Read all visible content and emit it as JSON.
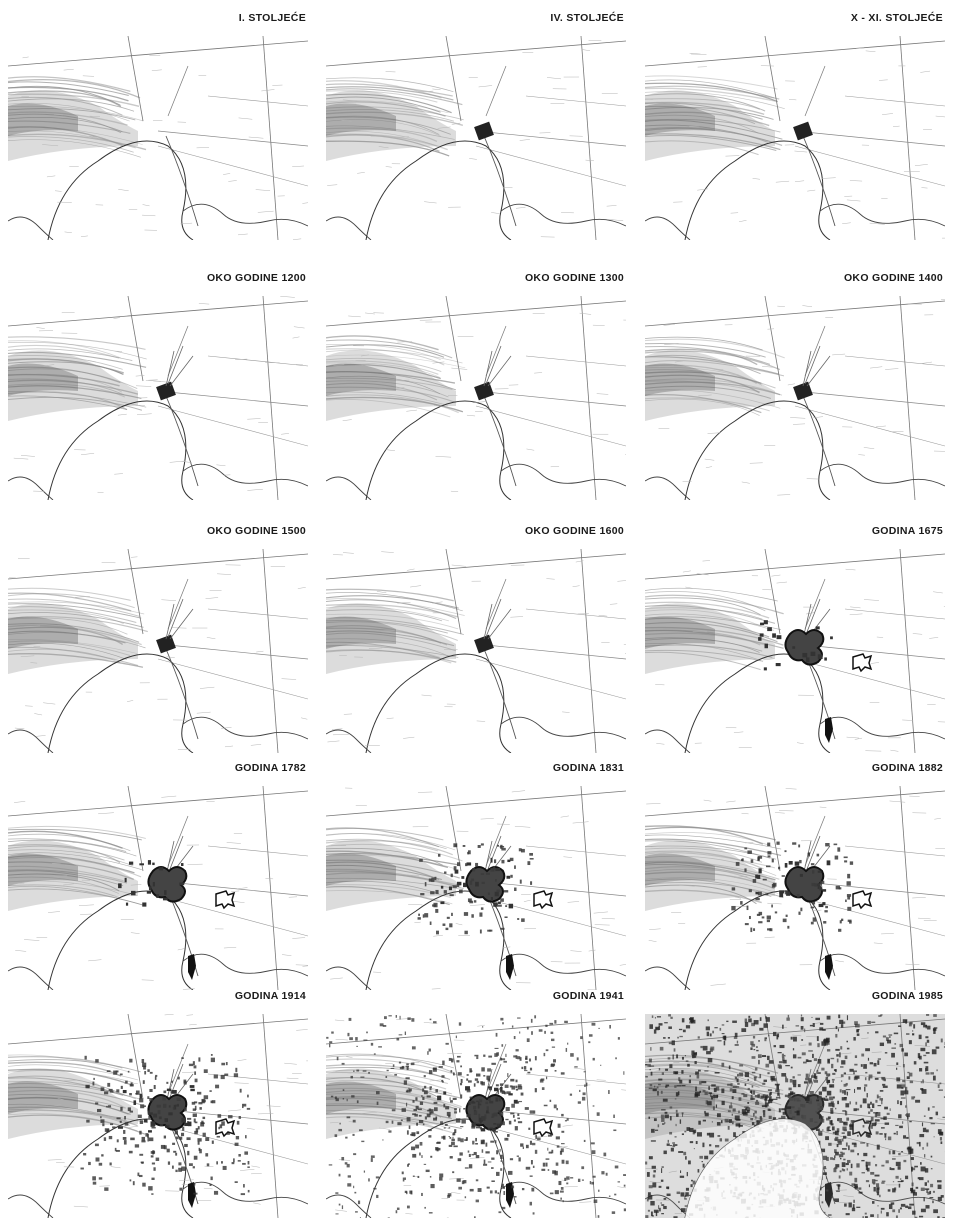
{
  "panels": [
    {
      "title": "I. STOLJEĆE",
      "stage": 0
    },
    {
      "title": "IV. STOLJEĆE",
      "stage": 1
    },
    {
      "title": "X - XI. STOLJEĆE",
      "stage": 1
    },
    {
      "title": "OKO GODINE 1200",
      "stage": 2
    },
    {
      "title": "OKO GODINE 1300",
      "stage": 2
    },
    {
      "title": "OKO GODINE 1400",
      "stage": 2
    },
    {
      "title": "OKO GODINE 1500",
      "stage": 2
    },
    {
      "title": "OKO GODINE 1600",
      "stage": 2
    },
    {
      "title": "GODINA 1675",
      "stage": 3
    },
    {
      "title": "GODINA 1782",
      "stage": 3
    },
    {
      "title": "GODINA 1831",
      "stage": 4
    },
    {
      "title": "GODINA 1882",
      "stage": 4
    },
    {
      "title": "GODINA 1914",
      "stage": 5
    },
    {
      "title": "GODINA 1941",
      "stage": 6
    },
    {
      "title": "GODINA 1985",
      "stage": 7
    }
  ]
}
